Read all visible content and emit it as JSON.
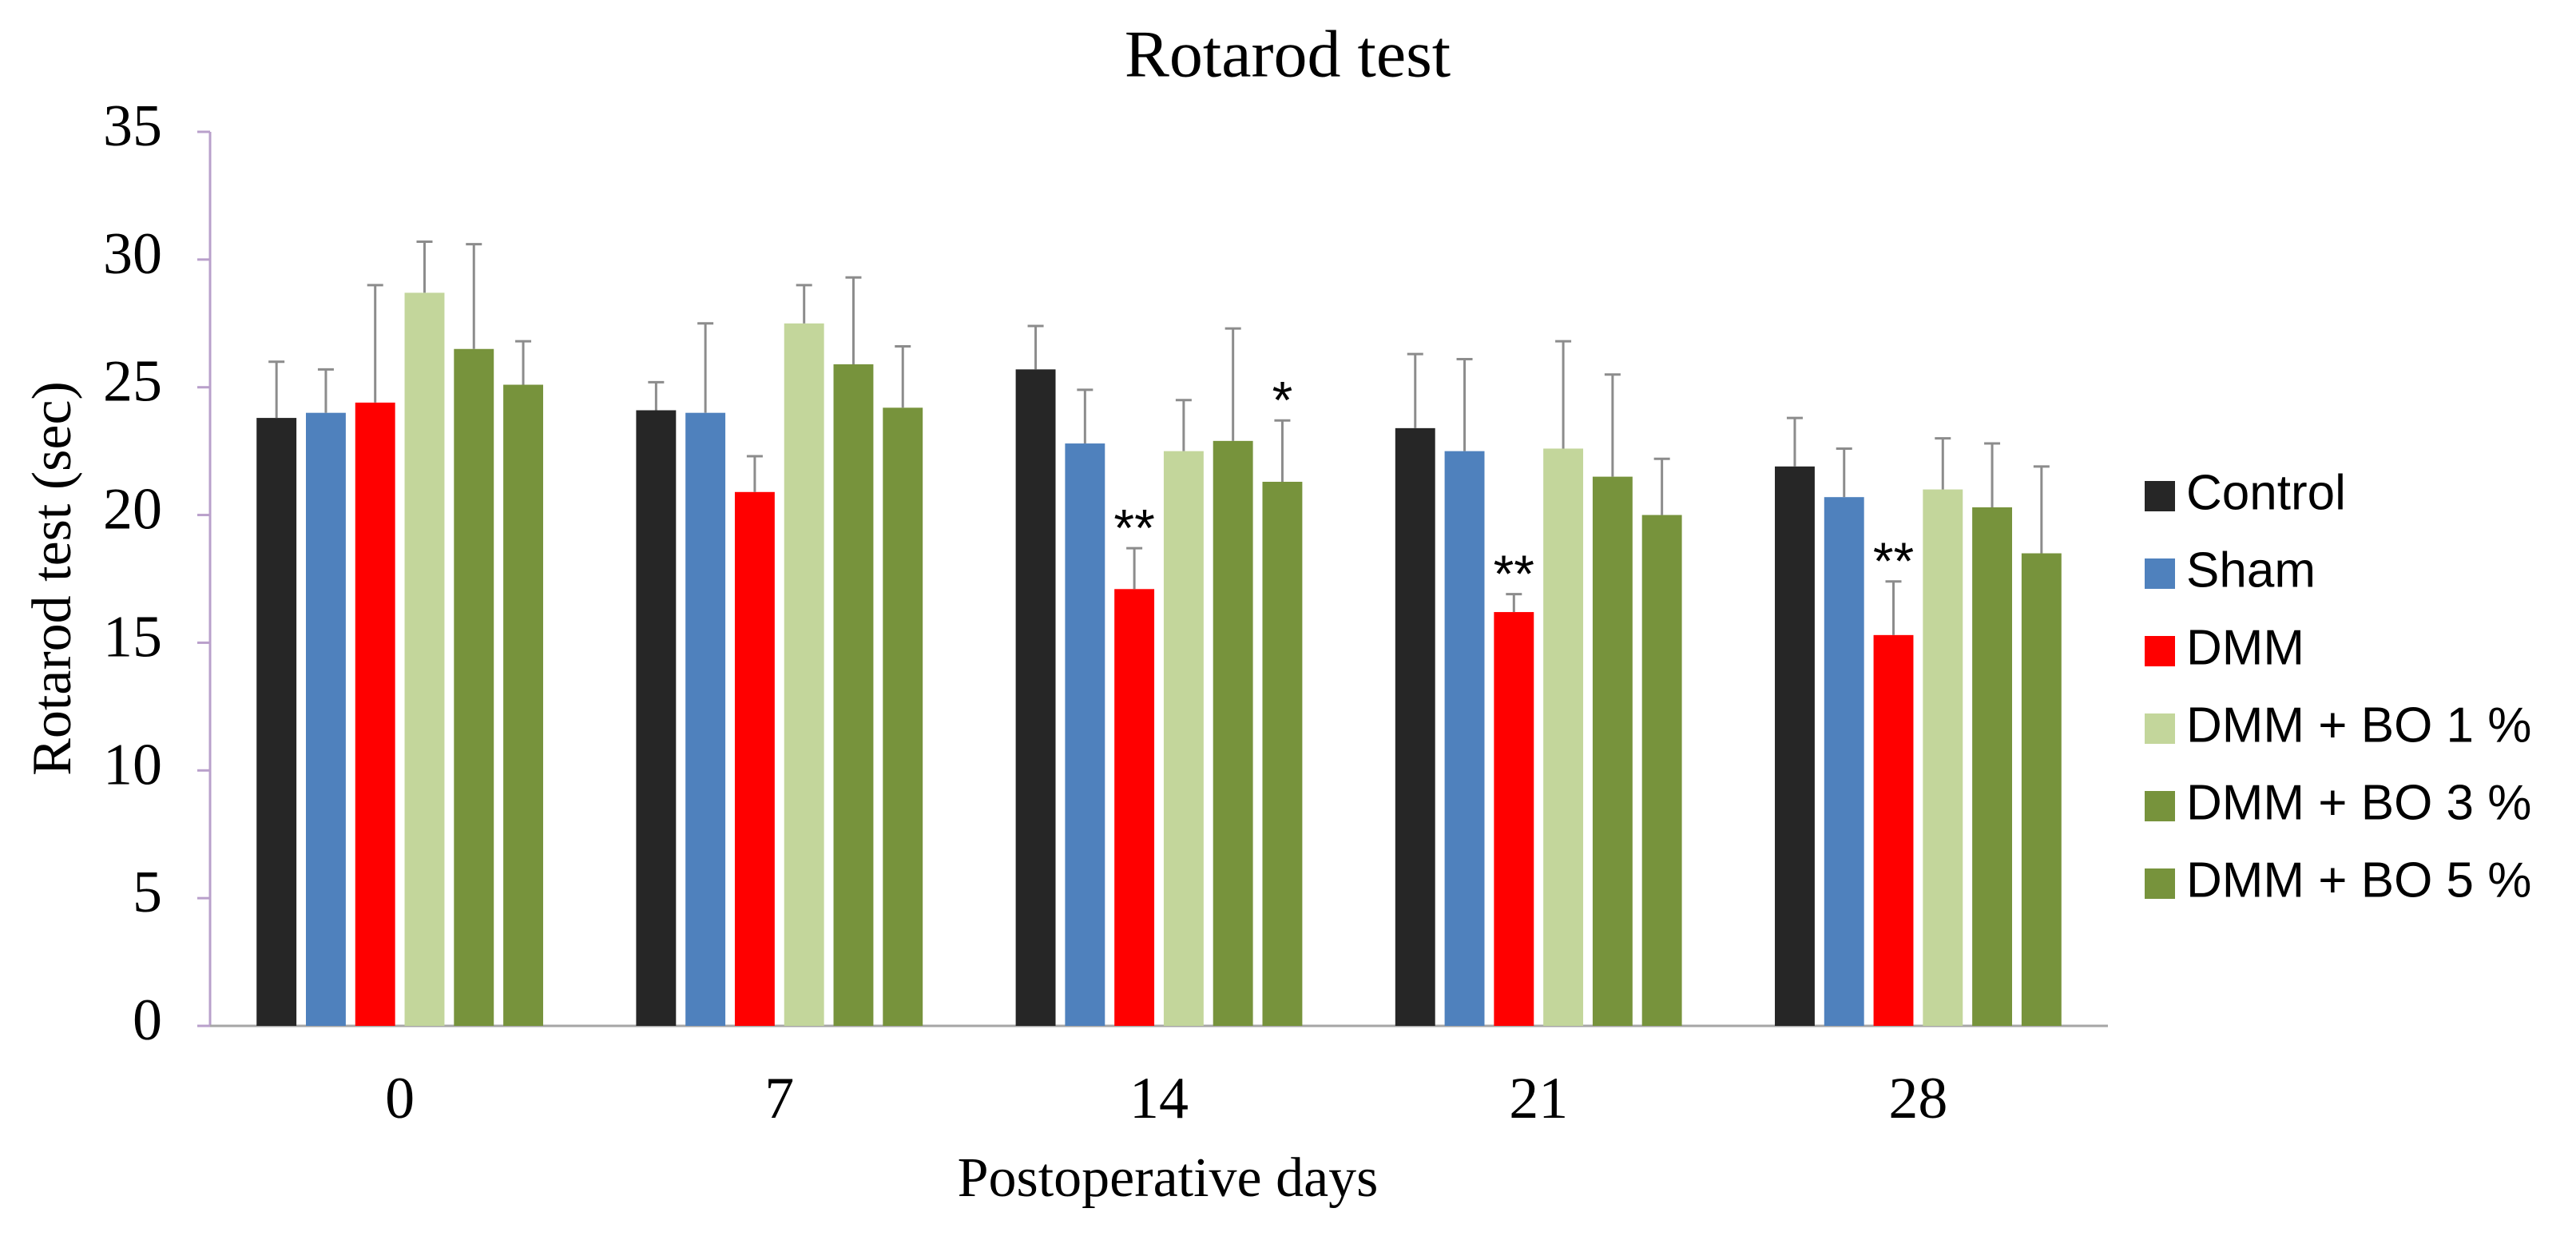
{
  "chart_data": {
    "type": "bar",
    "title": "Rotarod test",
    "x_label": "Postoperative days",
    "y_label": "Rotarod test (sec)",
    "categories": [
      "0",
      "7",
      "14",
      "21",
      "28"
    ],
    "ylim": [
      0,
      35
    ],
    "yticks": [
      0,
      5,
      10,
      15,
      20,
      25,
      30,
      35
    ],
    "grid": false,
    "legend": "right",
    "series": [
      {
        "name": "Control",
        "color": "#262626",
        "values": [
          23.8,
          24.1,
          25.7,
          23.4,
          21.9
        ],
        "errors": [
          2.2,
          1.1,
          1.7,
          2.9,
          1.9
        ]
      },
      {
        "name": "Sham",
        "color": "#4f81bd",
        "values": [
          24.0,
          24.0,
          22.8,
          22.5,
          20.7
        ],
        "errors": [
          1.7,
          3.5,
          2.1,
          3.6,
          1.9
        ]
      },
      {
        "name": "DMM",
        "color": "#ff0000",
        "values": [
          24.4,
          20.9,
          17.1,
          16.2,
          15.3
        ],
        "errors": [
          4.6,
          1.4,
          1.6,
          0.7,
          2.1
        ],
        "annotations": [
          null,
          null,
          "**",
          "**",
          "**"
        ]
      },
      {
        "name": "DMM + BO 1 %",
        "color": "#c3d69b",
        "values": [
          28.7,
          27.5,
          22.5,
          22.6,
          21.0
        ],
        "errors": [
          2.0,
          1.5,
          2.0,
          4.2,
          2.0
        ]
      },
      {
        "name": "DMM + BO 3 %",
        "color": "#77933c",
        "values": [
          26.5,
          25.9,
          22.9,
          21.5,
          20.3
        ],
        "errors": [
          4.1,
          3.4,
          4.4,
          4.0,
          2.5
        ]
      },
      {
        "name": "DMM + BO 5 %",
        "color": "#77933c",
        "values": [
          25.1,
          24.2,
          21.3,
          20.0,
          18.5
        ],
        "errors": [
          1.7,
          2.4,
          2.4,
          2.2,
          3.4
        ],
        "annotations": [
          null,
          null,
          "*",
          null,
          null
        ]
      }
    ]
  }
}
